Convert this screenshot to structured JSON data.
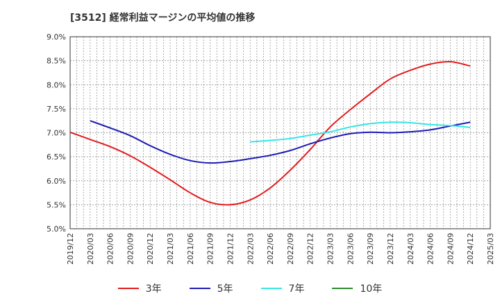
{
  "chart_data": {
    "type": "line",
    "title": "[3512]  経常利益マージンの平均値の推移",
    "x_labels": [
      "2019/12",
      "2020/03",
      "2020/06",
      "2020/09",
      "2020/12",
      "2021/03",
      "2021/06",
      "2021/09",
      "2021/12",
      "2022/03",
      "2022/06",
      "2022/09",
      "2022/12",
      "2023/03",
      "2023/06",
      "2023/09",
      "2023/12",
      "2024/03",
      "2024/06",
      "2024/09",
      "2024/12",
      "2025/03"
    ],
    "y_ticks": [
      "5.0%",
      "5.5%",
      "6.0%",
      "6.5%",
      "7.0%",
      "7.5%",
      "8.0%",
      "8.5%",
      "9.0%"
    ],
    "ylim": [
      5.0,
      9.0
    ],
    "grid": true,
    "legend_position": "bottom",
    "series": [
      {
        "name": "3年",
        "color": "#e41a1c",
        "values": [
          7.01,
          6.86,
          6.71,
          6.52,
          6.28,
          6.02,
          5.75,
          5.55,
          5.5,
          5.6,
          5.85,
          6.22,
          6.65,
          7.12,
          7.48,
          7.81,
          8.12,
          8.3,
          8.43,
          8.48,
          8.39,
          null
        ]
      },
      {
        "name": "5年",
        "color": "#1b1bb4",
        "values": [
          null,
          7.25,
          7.1,
          6.94,
          6.73,
          6.55,
          6.42,
          6.37,
          6.4,
          6.46,
          6.53,
          6.63,
          6.77,
          6.89,
          6.98,
          7.01,
          7.0,
          7.02,
          7.06,
          7.14,
          7.22,
          null
        ]
      },
      {
        "name": "7年",
        "color": "#33e6e6",
        "values": [
          null,
          null,
          null,
          null,
          null,
          null,
          null,
          null,
          null,
          6.81,
          6.84,
          6.88,
          6.95,
          7.02,
          7.12,
          7.19,
          7.22,
          7.21,
          7.17,
          7.15,
          7.11,
          null
        ]
      },
      {
        "name": "10年",
        "color": "#2a8a2a",
        "values": [
          null,
          null,
          null,
          null,
          null,
          null,
          null,
          null,
          null,
          null,
          null,
          null,
          null,
          null,
          null,
          null,
          null,
          null,
          null,
          null,
          null,
          null
        ]
      }
    ]
  }
}
